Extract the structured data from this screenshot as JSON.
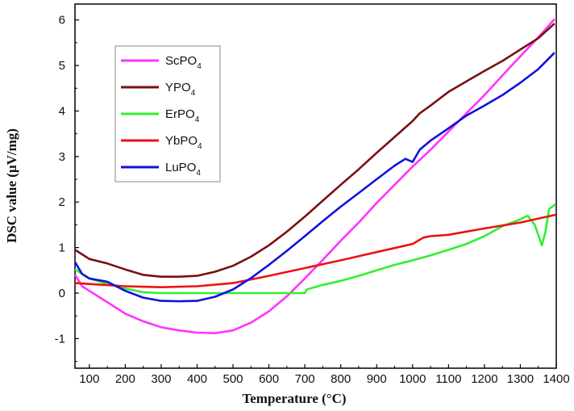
{
  "chart_data": {
    "type": "line",
    "title": "",
    "xlabel": "Temperature (°C)",
    "ylabel": "DSC value (μV/mg)",
    "xlim": [
      60,
      1400
    ],
    "ylim": [
      -1.65,
      6.35
    ],
    "x_ticks": [
      100,
      200,
      300,
      400,
      500,
      600,
      700,
      800,
      900,
      1000,
      1100,
      1200,
      1300,
      1400
    ],
    "x_tick_labels": [
      "100",
      "200",
      "300",
      "400",
      "500",
      "600",
      "700",
      "800",
      "900",
      "1000",
      "1100",
      "1200",
      "1300",
      "1400"
    ],
    "y_ticks": [
      -1,
      0,
      1,
      2,
      3,
      4,
      5,
      6
    ],
    "y_tick_labels": [
      "-1",
      "0",
      "1",
      "2",
      "3",
      "4",
      "5",
      "6"
    ],
    "grid": false,
    "legend_position": "top-left",
    "series": [
      {
        "name": "ScPO4",
        "label_main": "ScPO",
        "label_sub": "4",
        "color": "#ff33ff",
        "points": [
          [
            60,
            0.4
          ],
          [
            80,
            0.15
          ],
          [
            100,
            0.05
          ],
          [
            150,
            -0.2
          ],
          [
            200,
            -0.45
          ],
          [
            250,
            -0.62
          ],
          [
            300,
            -0.75
          ],
          [
            350,
            -0.82
          ],
          [
            400,
            -0.87
          ],
          [
            450,
            -0.88
          ],
          [
            500,
            -0.82
          ],
          [
            550,
            -0.65
          ],
          [
            600,
            -0.4
          ],
          [
            650,
            -0.07
          ],
          [
            700,
            0.32
          ],
          [
            750,
            0.73
          ],
          [
            800,
            1.15
          ],
          [
            850,
            1.55
          ],
          [
            900,
            1.98
          ],
          [
            950,
            2.38
          ],
          [
            1000,
            2.78
          ],
          [
            1050,
            3.15
          ],
          [
            1100,
            3.55
          ],
          [
            1150,
            3.95
          ],
          [
            1200,
            4.35
          ],
          [
            1250,
            4.78
          ],
          [
            1300,
            5.2
          ],
          [
            1350,
            5.62
          ],
          [
            1395,
            6.02
          ]
        ]
      },
      {
        "name": "YPO4",
        "label_main": "YPO",
        "label_sub": "4",
        "color": "#7a1010",
        "points": [
          [
            60,
            0.95
          ],
          [
            100,
            0.75
          ],
          [
            150,
            0.65
          ],
          [
            200,
            0.52
          ],
          [
            250,
            0.4
          ],
          [
            300,
            0.36
          ],
          [
            350,
            0.36
          ],
          [
            400,
            0.38
          ],
          [
            450,
            0.47
          ],
          [
            500,
            0.6
          ],
          [
            550,
            0.8
          ],
          [
            600,
            1.05
          ],
          [
            650,
            1.35
          ],
          [
            700,
            1.68
          ],
          [
            750,
            2.03
          ],
          [
            800,
            2.38
          ],
          [
            850,
            2.72
          ],
          [
            900,
            3.08
          ],
          [
            950,
            3.43
          ],
          [
            1000,
            3.78
          ],
          [
            1020,
            3.95
          ],
          [
            1050,
            4.12
          ],
          [
            1100,
            4.42
          ],
          [
            1150,
            4.65
          ],
          [
            1200,
            4.88
          ],
          [
            1250,
            5.1
          ],
          [
            1300,
            5.35
          ],
          [
            1350,
            5.6
          ],
          [
            1395,
            5.92
          ]
        ]
      },
      {
        "name": "ErPO4",
        "label_main": "ErPO",
        "label_sub": "4",
        "color": "#33ee33",
        "points": [
          [
            60,
            0.52
          ],
          [
            100,
            0.32
          ],
          [
            150,
            0.2
          ],
          [
            200,
            0.1
          ],
          [
            250,
            0.02
          ],
          [
            300,
            0.0
          ],
          [
            400,
            0.0
          ],
          [
            500,
            0.0
          ],
          [
            600,
            0.0
          ],
          [
            700,
            0.0
          ],
          [
            705,
            0.08
          ],
          [
            750,
            0.18
          ],
          [
            800,
            0.27
          ],
          [
            850,
            0.38
          ],
          [
            900,
            0.5
          ],
          [
            950,
            0.62
          ],
          [
            1000,
            0.72
          ],
          [
            1050,
            0.83
          ],
          [
            1100,
            0.95
          ],
          [
            1150,
            1.08
          ],
          [
            1200,
            1.25
          ],
          [
            1250,
            1.47
          ],
          [
            1300,
            1.62
          ],
          [
            1320,
            1.7
          ],
          [
            1340,
            1.5
          ],
          [
            1360,
            1.05
          ],
          [
            1370,
            1.35
          ],
          [
            1380,
            1.85
          ],
          [
            1398,
            1.95
          ]
        ]
      },
      {
        "name": "YbPO4",
        "label_main": "YbPO",
        "label_sub": "4",
        "color": "#ee1111",
        "points": [
          [
            60,
            0.22
          ],
          [
            100,
            0.2
          ],
          [
            200,
            0.15
          ],
          [
            300,
            0.13
          ],
          [
            400,
            0.15
          ],
          [
            500,
            0.22
          ],
          [
            600,
            0.38
          ],
          [
            700,
            0.55
          ],
          [
            800,
            0.72
          ],
          [
            900,
            0.9
          ],
          [
            1000,
            1.08
          ],
          [
            1030,
            1.22
          ],
          [
            1050,
            1.25
          ],
          [
            1100,
            1.28
          ],
          [
            1200,
            1.42
          ],
          [
            1300,
            1.55
          ],
          [
            1398,
            1.72
          ]
        ]
      },
      {
        "name": "LuPO4",
        "label_main": "LuPO",
        "label_sub": "4",
        "color": "#1111dd",
        "points": [
          [
            60,
            0.68
          ],
          [
            80,
            0.42
          ],
          [
            100,
            0.32
          ],
          [
            150,
            0.25
          ],
          [
            200,
            0.05
          ],
          [
            250,
            -0.1
          ],
          [
            300,
            -0.17
          ],
          [
            350,
            -0.18
          ],
          [
            400,
            -0.17
          ],
          [
            450,
            -0.08
          ],
          [
            500,
            0.08
          ],
          [
            550,
            0.33
          ],
          [
            600,
            0.62
          ],
          [
            650,
            0.93
          ],
          [
            700,
            1.25
          ],
          [
            750,
            1.58
          ],
          [
            800,
            1.9
          ],
          [
            850,
            2.2
          ],
          [
            900,
            2.5
          ],
          [
            950,
            2.8
          ],
          [
            980,
            2.95
          ],
          [
            1000,
            2.88
          ],
          [
            1020,
            3.15
          ],
          [
            1050,
            3.35
          ],
          [
            1100,
            3.62
          ],
          [
            1150,
            3.9
          ],
          [
            1200,
            4.12
          ],
          [
            1250,
            4.35
          ],
          [
            1300,
            4.62
          ],
          [
            1350,
            4.92
          ],
          [
            1395,
            5.28
          ]
        ]
      }
    ]
  }
}
